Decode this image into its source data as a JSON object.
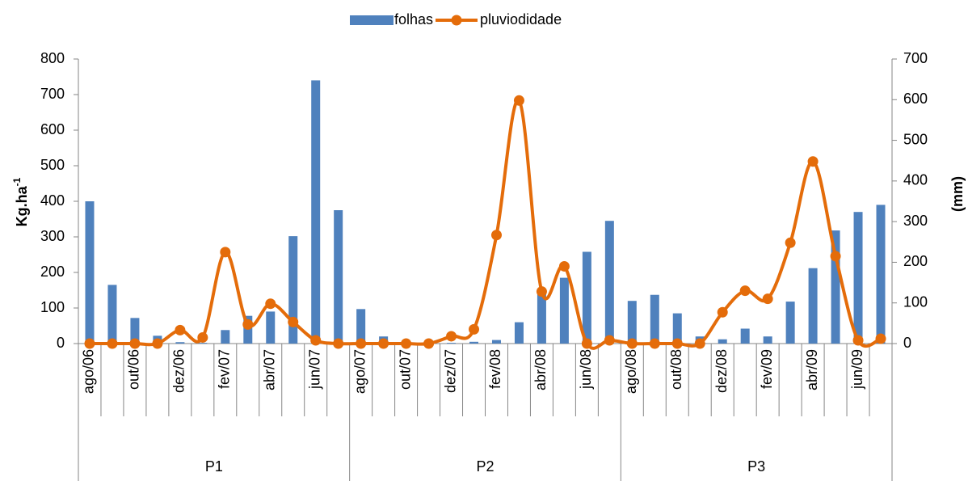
{
  "chart_data": {
    "type": "bar-line",
    "ylabel": "Kg.ha",
    "ylabel_superscript": "-1",
    "y2label": "(mm)",
    "categories": [
      "ago/06",
      null,
      "out/06",
      null,
      "dez/06",
      null,
      "fev/07",
      null,
      "abr/07",
      null,
      "jun/07",
      null,
      "ago/07",
      null,
      "out/07",
      null,
      "dez/07",
      null,
      "fev/08",
      null,
      "abr/08",
      null,
      "jun/08",
      null,
      "ago/08",
      null,
      "out/08",
      null,
      "dez/08",
      null,
      "fev/09",
      null,
      "abr/09",
      null,
      "jun/09",
      null
    ],
    "groups": [
      "P1",
      "P2",
      "P3"
    ],
    "series": [
      {
        "name": "folhas",
        "type": "bar",
        "color": "#4f81bd",
        "values": [
          400,
          165,
          72,
          22,
          4,
          2,
          38,
          78,
          90,
          302,
          740,
          375,
          97,
          20,
          2,
          0,
          2,
          5,
          10,
          60,
          140,
          185,
          258,
          345,
          120,
          137,
          85,
          20,
          12,
          42,
          20,
          118,
          212,
          318,
          370,
          390
        ]
      },
      {
        "name": "pluviodidade",
        "type": "line",
        "axis": "y2",
        "color": "#e46c0a",
        "values": [
          0,
          0,
          0,
          0,
          33,
          15,
          225,
          47,
          98,
          53,
          8,
          0,
          0,
          0,
          0,
          0,
          18,
          35,
          267,
          598,
          128,
          190,
          0,
          8,
          0,
          0,
          0,
          0,
          77,
          130,
          110,
          248,
          448,
          215,
          8,
          12
        ]
      }
    ],
    "ylim": [
      0,
      800
    ],
    "yticks": [
      0,
      100,
      200,
      300,
      400,
      500,
      600,
      700,
      800
    ],
    "y2lim": [
      0,
      700
    ],
    "y2ticks": [
      0,
      100,
      200,
      300,
      400,
      500,
      600,
      700
    ]
  }
}
